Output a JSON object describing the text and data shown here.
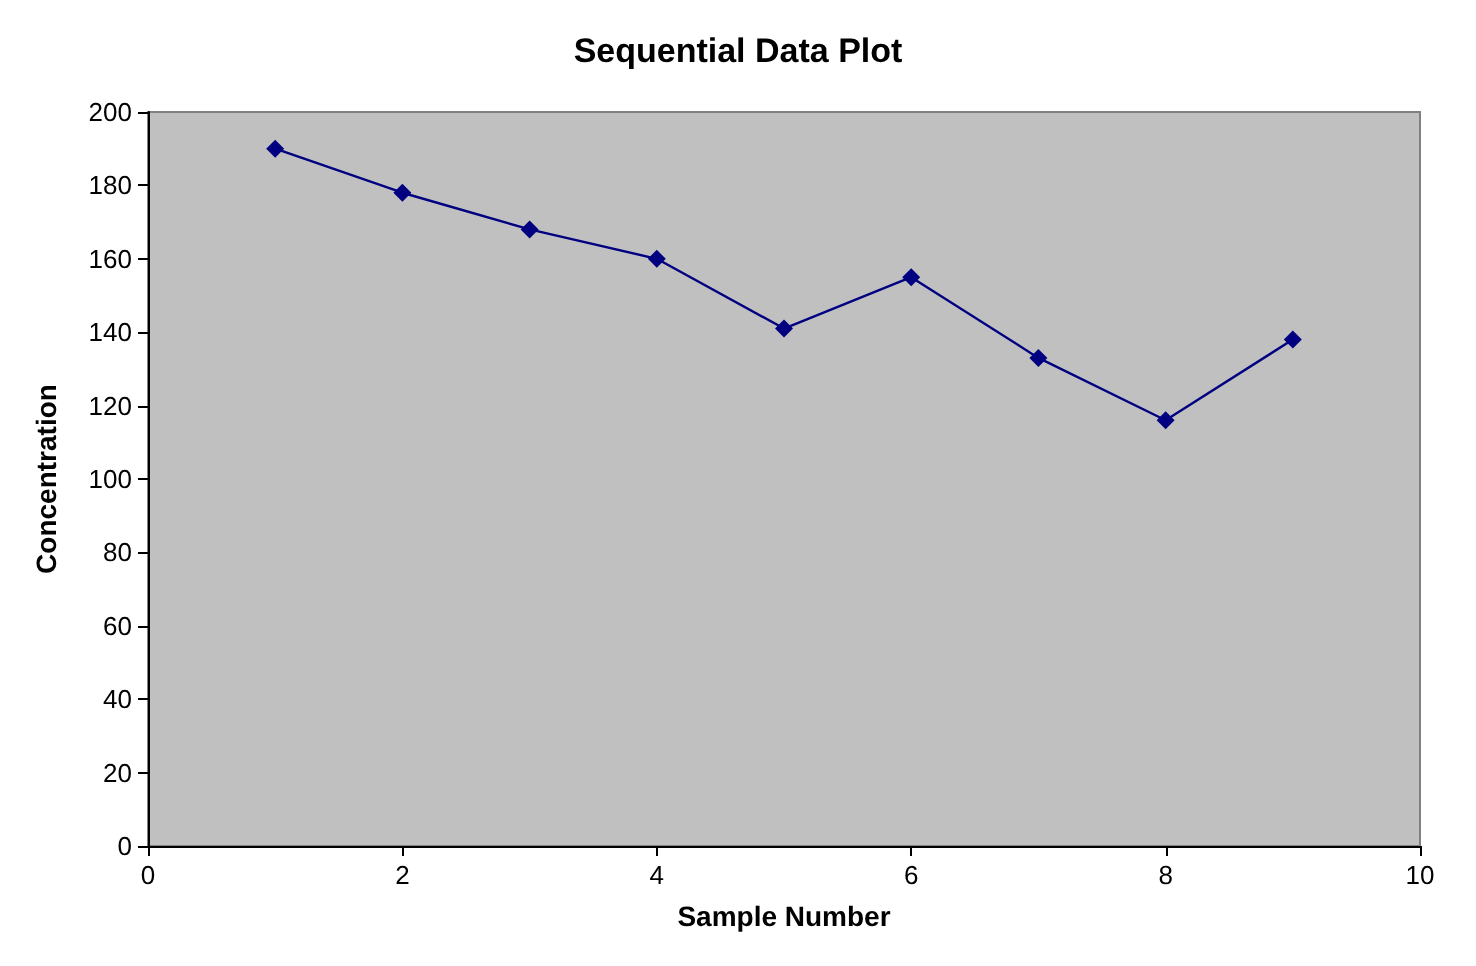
{
  "chart_data": {
    "type": "line",
    "title": "Sequential Data Plot",
    "xlabel": "Sample Number",
    "ylabel": "Concentration",
    "x": [
      1,
      2,
      3,
      4,
      5,
      6,
      7,
      8,
      9
    ],
    "series": [
      {
        "color": "#000080",
        "values": [
          190,
          178,
          168,
          160,
          141,
          155,
          133,
          116,
          138
        ]
      }
    ],
    "xlim": [
      0,
      10
    ],
    "xticks": [
      0,
      2,
      4,
      6,
      8,
      10
    ],
    "ylim": [
      0,
      200
    ],
    "yticks": [
      0,
      20,
      40,
      60,
      80,
      100,
      120,
      140,
      160,
      180,
      200
    ],
    "grid": false,
    "marker": "diamond",
    "line_style": "solid"
  }
}
